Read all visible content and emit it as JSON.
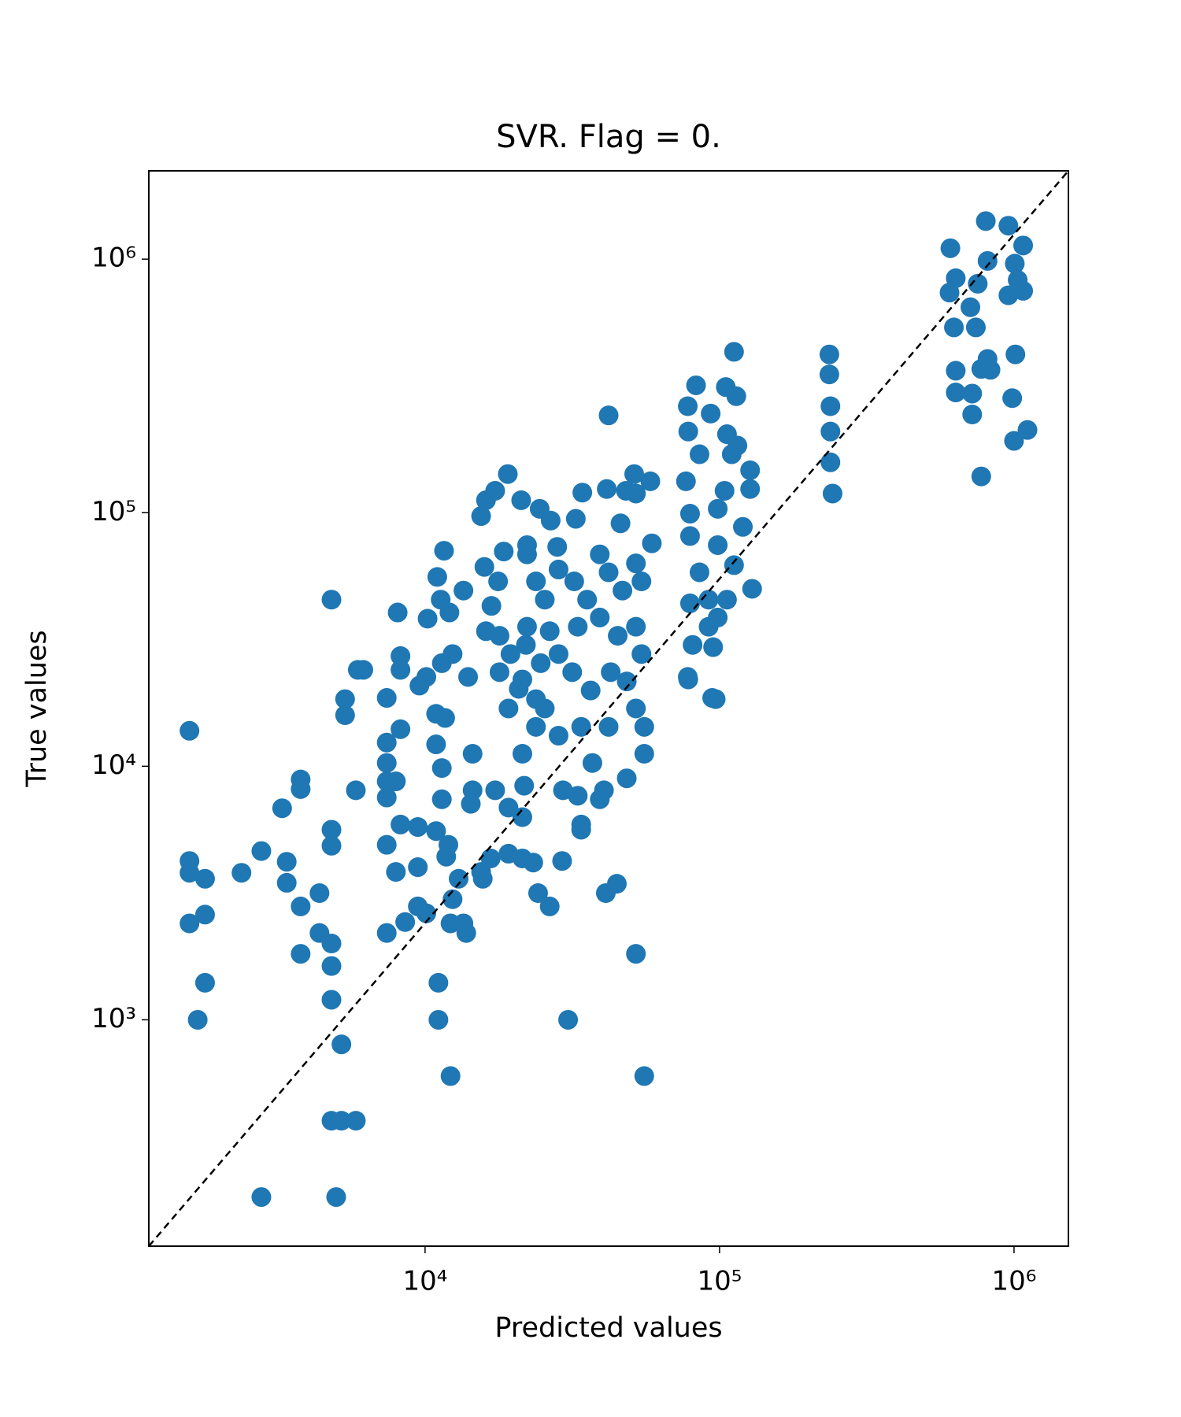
{
  "chart_data": {
    "type": "scatter",
    "title": "SVR. Flag = 0.",
    "x_label": "Predicted values",
    "y_label": "True values",
    "log_x": true,
    "log_y": true,
    "color": "#1f77b4",
    "xlim": [
      1153,
      1530000
    ],
    "ylim": [
      128,
      2230000
    ],
    "xticks": [
      {
        "value": 10000,
        "label": "10⁴"
      },
      {
        "value": 100000,
        "label": "10⁵"
      },
      {
        "value": 1000000,
        "label": "10⁶"
      }
    ],
    "yticks": [
      {
        "value": 1000,
        "label": "10³"
      },
      {
        "value": 10000,
        "label": "10⁴"
      },
      {
        "value": 100000,
        "label": "10⁵"
      },
      {
        "value": 1000000,
        "label": "10⁶"
      }
    ],
    "reference_line": {
      "x": [
        1153,
        1530000
      ],
      "y": [
        128,
        2230000
      ],
      "color": "#000000"
    },
    "x": [
      1585,
      1585,
      1585,
      1790,
      1585,
      1790,
      1790,
      1690,
      2380,
      2780,
      3270,
      3390,
      3780,
      3780,
      3390,
      3780,
      3780,
      4380,
      4380,
      4810,
      4810,
      4810,
      4810,
      4810,
      4810,
      5200,
      4810,
      5200,
      5820,
      2780,
      4990,
      5350,
      5350,
      5910,
      6170,
      5820,
      7410,
      8070,
      8250,
      8250,
      8250,
      7410,
      7410,
      7410,
      7410,
      7960,
      8250,
      7410,
      7410,
      7960,
      8560,
      9450,
      9450,
      10100,
      9450,
      9570,
      10100,
      10200,
      10900,
      11000,
      11300,
      11600,
      12100,
      11400,
      11700,
      10900,
      11400,
      11400,
      10900,
      11800,
      12000,
      12200,
      12200,
      11100,
      11100,
      13500,
      13800,
      13000,
      12400,
      13500,
      12400,
      14000,
      14500,
      14500,
      14300,
      15500,
      15700,
      17300,
      16700,
      15500,
      16100,
      17300,
      19100,
      21200,
      18500,
      15900,
      17700,
      16800,
      16100,
      17900,
      19500,
      17900,
      20800,
      19200,
      22200,
      22200,
      23800,
      22200,
      22000,
      24700,
      21400,
      23800,
      26700,
      24500,
      28100,
      28400,
      25500,
      26500,
      28400,
      25500,
      23800,
      21400,
      21700,
      19200,
      21400,
      19200,
      21400,
      23300,
      24200,
      26500,
      29200,
      30600,
      28400,
      29400,
      33000,
      33900,
      33900,
      32500,
      34200,
      32100,
      35500,
      33000,
      31600,
      36500,
      33900,
      37000,
      40500,
      39200,
      42000,
      41400,
      39200,
      42000,
      39200,
      45100,
      42700,
      46800,
      46100,
      48100,
      51300,
      52000,
      58200,
      58900,
      52000,
      54300,
      52000,
      54300,
      48400,
      52000,
      55500,
      55500,
      48400,
      42000,
      52000,
      55500,
      41100,
      44800,
      76900,
      78000,
      83200,
      78300,
      85500,
      79400,
      79400,
      85500,
      79400,
      78300,
      81000,
      91800,
      91800,
      98600,
      98600,
      104000,
      110000,
      105000,
      114000,
      112000,
      93300,
      106000,
      115000,
      127000,
      127000,
      120000,
      112000,
      129000,
      106000,
      98600,
      95100,
      94400,
      97000,
      78000,
      236000,
      236000,
      238000,
      238000,
      238000,
      242000,
      608000,
      634000,
      604000,
      625000,
      634000,
      634000,
      721000,
      721000,
      774000,
      802000,
      813000,
      753000,
      711000,
      742000,
      774000,
      832000,
      813000,
      957000,
      1074000,
      1006000,
      1029000,
      957000,
      1074000,
      1011000,
      986000,
      1000000,
      1111000
    ],
    "y": [
      13800,
      4230,
      3800,
      3600,
      2400,
      2600,
      1400,
      1000,
      3800,
      4630,
      6830,
      4200,
      8870,
      8130,
      3470,
      2800,
      1820,
      3160,
      2200,
      2000,
      1630,
      1200,
      5620,
      4860,
      45400,
      800,
      400,
      400,
      400,
      200,
      200,
      18400,
      15900,
      24000,
      24000,
      8040,
      18600,
      40400,
      27200,
      24000,
      14000,
      12400,
      10300,
      8720,
      7530,
      8720,
      5890,
      4900,
      2200,
      3830,
      2430,
      4000,
      2800,
      2630,
      5760,
      20800,
      22500,
      38200,
      16100,
      55800,
      45400,
      70800,
      40400,
      25500,
      15500,
      12200,
      9840,
      7410,
      5550,
      4400,
      4900,
      2400,
      600,
      1400,
      1000,
      2400,
      2200,
      3600,
      2990,
      49300,
      27700,
      22500,
      11200,
      8040,
      7110,
      3830,
      3600,
      8040,
      4330,
      97000,
      112000,
      122000,
      142000,
      112000,
      70300,
      61100,
      53600,
      42900,
      34100,
      32700,
      27700,
      23500,
      20200,
      16900,
      68500,
      74500,
      53600,
      35500,
      30100,
      25500,
      22000,
      18400,
      93100,
      103600,
      73300,
      59700,
      45400,
      34100,
      27700,
      16900,
      14300,
      11200,
      8380,
      6870,
      6300,
      4520,
      4330,
      4170,
      3160,
      2800,
      4230,
      1000,
      13200,
      8040,
      7650,
      5890,
      5620,
      94600,
      120000,
      53600,
      45400,
      35500,
      23500,
      19900,
      14300,
      10300,
      8040,
      7410,
      242000,
      124000,
      68500,
      58200,
      38600,
      32700,
      23500,
      49300,
      90800,
      122000,
      142000,
      119000,
      133000,
      75700,
      63100,
      53600,
      35500,
      27700,
      21600,
      16900,
      14300,
      11200,
      8960,
      14300,
      1820,
      600,
      3160,
      3440,
      133000,
      263000,
      318000,
      209000,
      170000,
      99100,
      80900,
      58200,
      43900,
      22000,
      30100,
      35500,
      45400,
      74500,
      103600,
      122000,
      170000,
      313000,
      288000,
      431000,
      246000,
      204000,
      184000,
      147000,
      124000,
      87900,
      62100,
      50100,
      45400,
      38600,
      29500,
      18600,
      18400,
      22500,
      421000,
      351000,
      263000,
      209000,
      158000,
      119000,
      1104000,
      841000,
      738000,
      538000,
      363000,
      298000,
      295000,
      244000,
      139000,
      1413000,
      984000,
      800000,
      646000,
      538000,
      369000,
      366000,
      404000,
      1355000,
      1132000,
      960000,
      828000,
      720000,
      750000,
      421000,
      283000,
      192000,
      212000
    ]
  }
}
